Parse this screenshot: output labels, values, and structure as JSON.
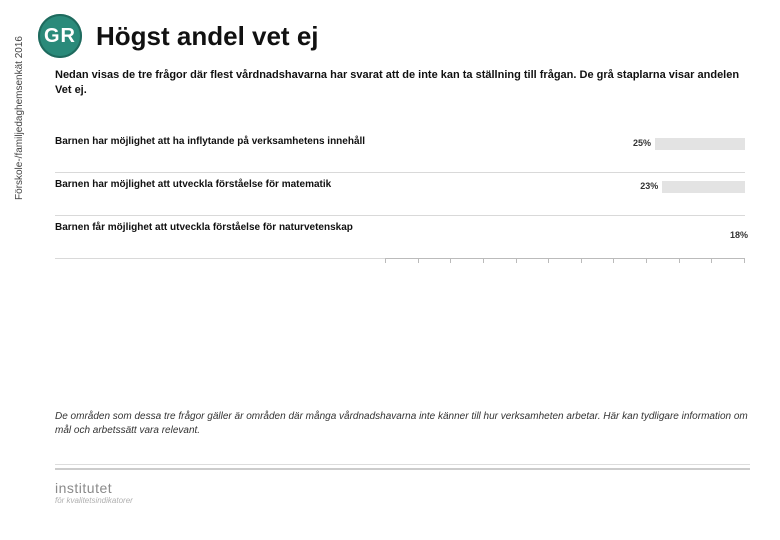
{
  "side_label": "Förskole-/familjedaghemsenkät 2016",
  "logo_text": "GR",
  "title": "Högst andel vet ej",
  "intro": "Nedan visas de tre frågor där flest vårdnadshavarna har svarat att de inte kan ta ställning till frågan. De grå staplarna visar andelen Vet ej.",
  "chart": {
    "type": "bar",
    "orientation": "horizontal",
    "bar_color": "#e3e3e3",
    "label_fontsize": 10,
    "pct_fontsize": 9,
    "value_max": 100,
    "rows": [
      {
        "label": "Barnen har möjlighet att ha inflytande på verksamhetens innehåll",
        "value": 25,
        "pct_label": "25%"
      },
      {
        "label": "Barnen har möjlighet att utveckla förståelse för matematik",
        "value": 23,
        "pct_label": "23%"
      },
      {
        "label": "Barnen får möjlighet att utveckla förståelse för naturvetenskap",
        "value": null,
        "pct_label": ""
      }
    ],
    "orphan_pct": "18%",
    "axis_ticks": 12
  },
  "footnote": "De områden som dessa tre frågor gäller är områden där många vårdnadshavarna inte känner till hur verksamheten arbetar. Här kan tydligare information om mål och arbetssätt vara relevant.",
  "footer_logo": "institutet",
  "footer_sub": "för kvalitetsindikatorer"
}
